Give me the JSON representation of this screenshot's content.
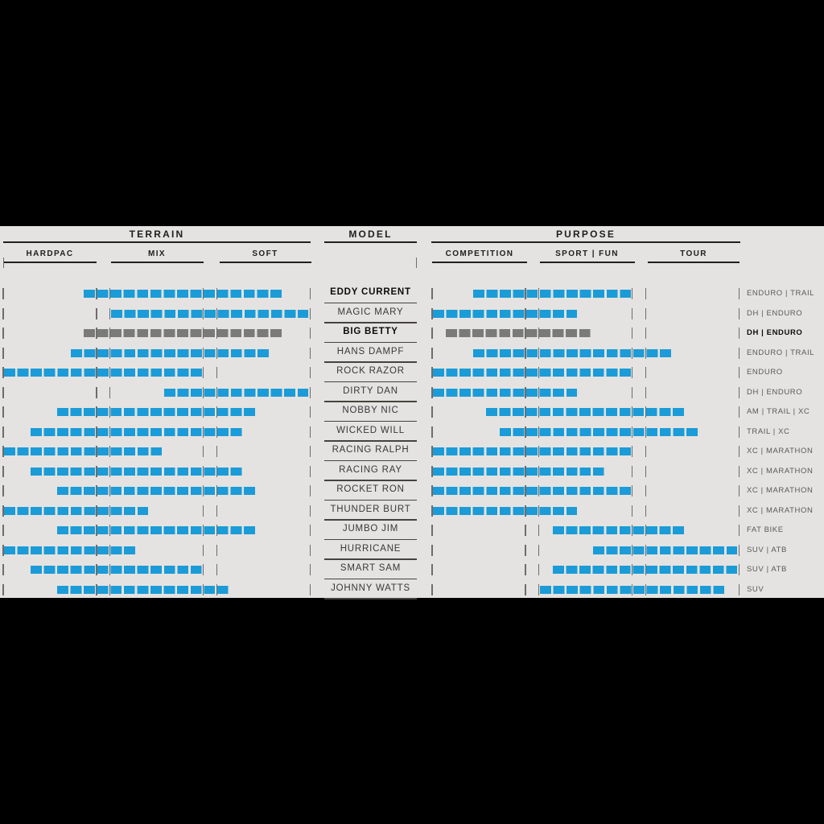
{
  "title_row": {
    "terrain": "TERRAIN",
    "model": "MODEL",
    "purpose": "PURPOSE"
  },
  "terrain_columns": [
    {
      "label": "HARDPAC"
    },
    {
      "label": "MIX"
    },
    {
      "label": "SOFT"
    }
  ],
  "purpose_columns": [
    {
      "label": "COMPETITION"
    },
    {
      "label": "SPORT | FUN"
    },
    {
      "label": "TOUR"
    }
  ],
  "colors": {
    "background": "#e4e3e1",
    "frame": "#000000",
    "bar_blue": "#1b9bd7",
    "bar_gray": "#7a7a78",
    "rule": "#22201e",
    "divider": "#6d6c6a"
  },
  "chart_data": {
    "type": "table",
    "title": "Tire model suitability matrix",
    "column_groups": [
      "TERRAIN",
      "MODEL",
      "PURPOSE"
    ],
    "terrain_subcolumns": [
      "HARDPAC",
      "MIX",
      "SOFT"
    ],
    "purpose_subcolumns": [
      "COMPETITION",
      "SPORT | FUN",
      "TOUR"
    ],
    "scale_note": "Bar extents in cell units 0-22: cells 0-6 = first subcolumn, 7 = gap, 8-14 = second subcolumn, 15 = gap, 16-22 = third subcolumn",
    "cells_total": 23,
    "rows": [
      {
        "model": "EDDY CURRENT",
        "terrain": [
          6,
          20
        ],
        "purpose": [
          3,
          14
        ],
        "category": "ENDURO | TRAIL",
        "color": "blue",
        "emphasis": "model-bold"
      },
      {
        "model": "MAGIC MARY",
        "terrain": [
          8,
          22
        ],
        "purpose": [
          0,
          10
        ],
        "category": "DH | ENDURO",
        "color": "blue",
        "emphasis": "none"
      },
      {
        "model": "BIG BETTY",
        "terrain": [
          6,
          20
        ],
        "purpose": [
          1,
          11
        ],
        "category": "DH | ENDURO",
        "color": "gray",
        "emphasis": "row-bold"
      },
      {
        "model": "HANS DAMPF",
        "terrain": [
          5,
          19
        ],
        "purpose": [
          3,
          17
        ],
        "category": "ENDURO | TRAIL",
        "color": "blue",
        "emphasis": "none"
      },
      {
        "model": "ROCK RAZOR",
        "terrain": [
          0,
          14
        ],
        "purpose": [
          0,
          14
        ],
        "category": "ENDURO",
        "color": "blue",
        "emphasis": "none"
      },
      {
        "model": "DIRTY DAN",
        "terrain": [
          12,
          22
        ],
        "purpose": [
          0,
          10
        ],
        "category": "DH | ENDURO",
        "color": "blue",
        "emphasis": "none"
      },
      {
        "model": "NOBBY NIC",
        "terrain": [
          4,
          18
        ],
        "purpose": [
          4,
          18
        ],
        "category": "AM | TRAIL | XC",
        "color": "blue",
        "emphasis": "none"
      },
      {
        "model": "WICKED WILL",
        "terrain": [
          2,
          17
        ],
        "purpose": [
          5,
          19
        ],
        "category": "TRAIL | XC",
        "color": "blue",
        "emphasis": "none"
      },
      {
        "model": "RACING RALPH",
        "terrain": [
          0,
          11
        ],
        "purpose": [
          0,
          14
        ],
        "category": "XC | MARATHON",
        "color": "blue",
        "emphasis": "none"
      },
      {
        "model": "RACING RAY",
        "terrain": [
          2,
          17
        ],
        "purpose": [
          0,
          12
        ],
        "category": "XC | MARATHON",
        "color": "blue",
        "emphasis": "none"
      },
      {
        "model": "ROCKET RON",
        "terrain": [
          4,
          18
        ],
        "purpose": [
          0,
          14
        ],
        "category": "XC | MARATHON",
        "color": "blue",
        "emphasis": "none"
      },
      {
        "model": "THUNDER BURT",
        "terrain": [
          0,
          10
        ],
        "purpose": [
          0,
          10
        ],
        "category": "XC | MARATHON",
        "color": "blue",
        "emphasis": "none"
      },
      {
        "model": "JUMBO JIM",
        "terrain": [
          4,
          18
        ],
        "purpose": [
          9,
          18
        ],
        "category": "FAT BIKE",
        "color": "blue",
        "emphasis": "none"
      },
      {
        "model": "HURRICANE",
        "terrain": [
          0,
          9
        ],
        "purpose": [
          12,
          22
        ],
        "category": "SUV | ATB",
        "color": "blue",
        "emphasis": "none"
      },
      {
        "model": "SMART SAM",
        "terrain": [
          2,
          14
        ],
        "purpose": [
          9,
          22
        ],
        "category": "SUV | ATB",
        "color": "blue",
        "emphasis": "none"
      },
      {
        "model": "JOHNNY WATTS",
        "terrain": [
          4,
          16
        ],
        "purpose": [
          8,
          21
        ],
        "category": "SUV",
        "color": "blue",
        "emphasis": "none"
      }
    ]
  }
}
